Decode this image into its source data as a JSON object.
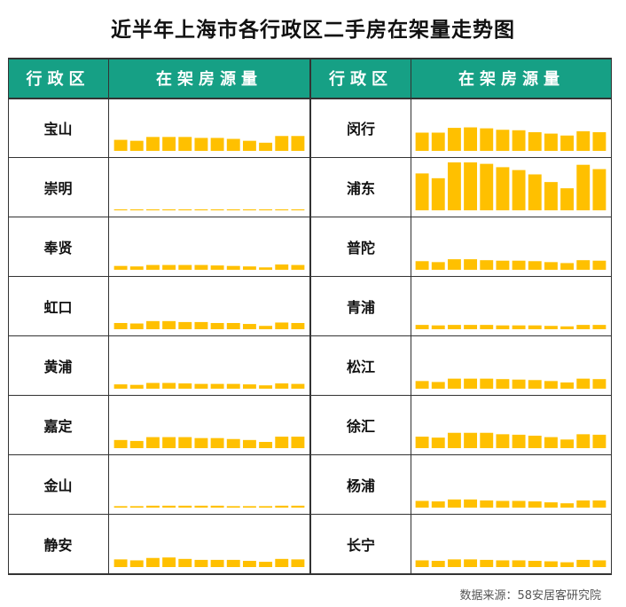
{
  "title": "近半年上海市各行政区二手房在架量走势图",
  "headers": {
    "district": "行政区",
    "listings": "在架房源量"
  },
  "source": "数据来源：58安居客研究院",
  "colors": {
    "header_bg": "#16a085",
    "bar": "#FFC000"
  },
  "chart_data": {
    "type": "bar",
    "title": "近半年上海市各行政区二手房在架量走势图",
    "ylabel": "在架房源量",
    "ylim": [
      0,
      100
    ],
    "left": [
      {
        "name": "宝山",
        "values": [
          23,
          21,
          29,
          29,
          29,
          27,
          27,
          25,
          21,
          17,
          31,
          31
        ]
      },
      {
        "name": "崇明",
        "values": [
          2,
          2,
          2,
          2,
          2,
          2,
          2,
          2,
          2,
          2,
          2,
          2
        ]
      },
      {
        "name": "奉贤",
        "values": [
          8,
          7,
          10,
          10,
          10,
          10,
          9,
          8,
          7,
          5,
          11,
          10
        ]
      },
      {
        "name": "虹口",
        "values": [
          13,
          12,
          17,
          17,
          15,
          15,
          13,
          13,
          11,
          7,
          14,
          13
        ]
      },
      {
        "name": "黄浦",
        "values": [
          9,
          8,
          12,
          12,
          11,
          10,
          10,
          10,
          9,
          7,
          11,
          10
        ]
      },
      {
        "name": "嘉定",
        "values": [
          17,
          15,
          23,
          23,
          23,
          21,
          21,
          19,
          17,
          13,
          24,
          24
        ]
      },
      {
        "name": "金山",
        "values": [
          3,
          3,
          4,
          4,
          4,
          4,
          4,
          3,
          3,
          3,
          4,
          4
        ]
      },
      {
        "name": "静安",
        "values": [
          16,
          14,
          19,
          20,
          17,
          15,
          15,
          15,
          13,
          11,
          17,
          16
        ]
      }
    ],
    "right": [
      {
        "name": "闵行",
        "values": [
          38,
          38,
          48,
          49,
          47,
          44,
          43,
          39,
          36,
          32,
          41,
          39
        ]
      },
      {
        "name": "浦东",
        "values": [
          77,
          67,
          100,
          100,
          97,
          90,
          84,
          75,
          59,
          46,
          95,
          86
        ]
      },
      {
        "name": "普陀",
        "values": [
          18,
          16,
          22,
          22,
          20,
          19,
          19,
          18,
          16,
          14,
          20,
          19
        ]
      },
      {
        "name": "青浦",
        "values": [
          9,
          8,
          9,
          9,
          9,
          8,
          8,
          8,
          7,
          6,
          9,
          9
        ]
      },
      {
        "name": "松江",
        "values": [
          16,
          14,
          21,
          21,
          21,
          20,
          19,
          18,
          16,
          13,
          21,
          20
        ]
      },
      {
        "name": "徐汇",
        "values": [
          24,
          22,
          32,
          32,
          32,
          29,
          28,
          26,
          23,
          18,
          29,
          28
        ]
      },
      {
        "name": "杨浦",
        "values": [
          14,
          13,
          17,
          17,
          15,
          14,
          14,
          13,
          11,
          9,
          15,
          15
        ]
      },
      {
        "name": "长宁",
        "values": [
          14,
          13,
          16,
          16,
          15,
          14,
          14,
          13,
          12,
          10,
          15,
          14
        ]
      }
    ]
  }
}
